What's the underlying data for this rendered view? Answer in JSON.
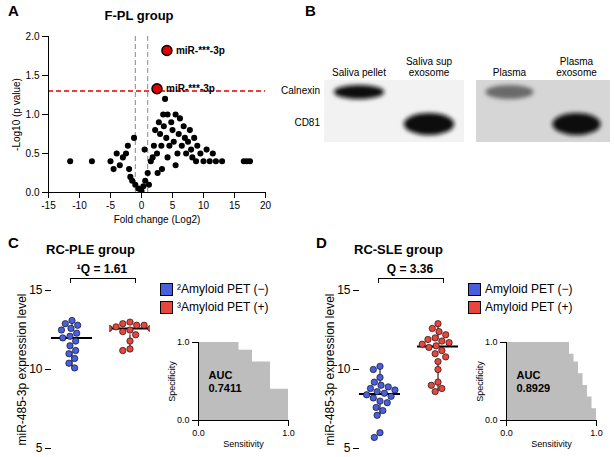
{
  "chart_data": [
    {
      "panel": "A",
      "type": "scatter",
      "title": "F-PL group",
      "xlabel": "Fold change (Log2)",
      "ylabel": "-Log10 (p value)",
      "xlim": [
        -15,
        20
      ],
      "xticks": [
        -15,
        -10,
        -5,
        0,
        5,
        10,
        15,
        20
      ],
      "ylim": [
        0,
        2.0
      ],
      "yticks": [
        {
          "value": 0,
          "label": "0.0"
        },
        0.5,
        {
          "value": 1,
          "label": "1.0"
        },
        1.5,
        {
          "value": 2,
          "label": "2.0"
        }
      ],
      "hlines": [
        {
          "value": 1.3,
          "color": "#e00000",
          "line_style": "dashed"
        }
      ],
      "vlines": [
        {
          "value": -1,
          "color": "#888888",
          "line_style": "dashed"
        },
        {
          "value": 1,
          "color": "#888888",
          "line_style": "dashed"
        }
      ],
      "series": [
        {
          "color": "#000000",
          "x": [
            -11.5,
            -8,
            -5,
            -4.5,
            -4,
            -3.5,
            -3,
            -2.5,
            -2,
            -1.8,
            -1.5,
            -1,
            -0.5,
            0,
            0.3,
            0.6,
            1,
            1.2,
            -2.2,
            -1.2,
            0.5,
            1.5,
            2,
            2.2,
            2.5,
            2.8,
            3,
            3.2,
            3.5,
            3.8,
            3.6,
            4,
            4.2,
            4.5,
            4.8,
            5,
            5.2,
            5.5,
            5.8,
            6,
            6.2,
            6.5,
            6.8,
            7,
            7.2,
            7.5,
            7.8,
            8,
            8.2,
            8.5,
            8.8,
            9,
            9.5,
            10,
            10.5,
            11,
            11.5,
            12,
            13,
            16.5,
            17,
            17.5,
            1.8,
            2.6,
            4.2,
            3.3,
            5.5
          ],
          "y": [
            0.4,
            0.4,
            0.4,
            0.3,
            0.5,
            0.35,
            0.45,
            0.5,
            0.3,
            0.2,
            0.15,
            0.1,
            0.05,
            0.02,
            0.08,
            0.15,
            0.25,
            0.1,
            0.6,
            0.7,
            0.55,
            0.4,
            0.6,
            0.8,
            0.5,
            0.9,
            0.75,
            0.6,
            1.0,
            1.2,
            0.85,
            0.7,
            0.45,
            0.6,
            0.9,
            0.8,
            0.65,
            1.0,
            0.5,
            0.75,
            0.95,
            0.6,
            0.85,
            0.7,
            0.5,
            0.65,
            0.8,
            0.55,
            0.45,
            0.7,
            0.4,
            0.6,
            0.5,
            0.4,
            0.55,
            0.4,
            0.5,
            0.4,
            0.4,
            0.4,
            0.4,
            0.4,
            0.45,
            0.25,
            1.0,
            0.3,
            0.35
          ]
        },
        {
          "color": "#e00000",
          "x": [
            4.1,
            2.5
          ],
          "y": [
            1.82,
            1.33
          ],
          "labels": [
            "miR-***-3p",
            "miR-***-3p"
          ]
        }
      ]
    },
    {
      "panel": "B",
      "type": "blot",
      "blots": [
        {
          "lanes": [
            "Saliva pellet",
            "Saliva sup exosome"
          ]
        },
        {
          "lanes": [
            "Plasma",
            "Plasma exosome"
          ]
        }
      ],
      "rows": [
        "Calnexin",
        "CD81"
      ],
      "bands": {
        "Calnexin": [
          "Saliva pellet",
          "Plasma"
        ],
        "CD81": [
          "Saliva sup exosome",
          "Plasma exosome"
        ]
      }
    },
    {
      "panel": "C",
      "type": "box",
      "title": "RC-PLE group",
      "ylabel": "miR-485-3p expression level",
      "ylim": [
        5,
        15
      ],
      "yticks": [
        5,
        10,
        15
      ],
      "annotation": "¹Q = 1.61",
      "series": [
        {
          "name": "²Amyloid PET (−)",
          "color": "#4a5fdc",
          "values": [
            13.1,
            12.9,
            12.8,
            12.6,
            12.5,
            12.3,
            12.1,
            12.0,
            11.8,
            11.5,
            11.2,
            11.0,
            10.7,
            10.4,
            10.1
          ]
        },
        {
          "name": "³Amyloid PET (+)",
          "color": "#e8453c",
          "values": [
            13.0,
            12.9,
            12.8,
            12.8,
            12.7,
            12.6,
            12.6,
            12.5,
            12.4,
            12.2,
            11.8,
            11.3,
            11.2
          ]
        }
      ],
      "inset": {
        "type": "area",
        "xlabel": "Sensitivity",
        "ylabel": "Specificity",
        "color": "#bdbdbd",
        "xlim": [
          0,
          1
        ],
        "ylim": [
          0,
          1
        ],
        "xticks": [
          {
            "value": 0,
            "label": "0.0"
          },
          {
            "value": 1,
            "label": "1.0"
          }
        ],
        "yticks": [
          {
            "value": 0,
            "label": "0.0"
          },
          {
            "value": 1,
            "label": "1.0"
          }
        ],
        "x": [
          0,
          0.45,
          0.6,
          0.8,
          0.95,
          1
        ],
        "y": [
          1,
          0.9,
          0.75,
          0.4,
          0.4,
          0
        ],
        "annotation": [
          "AUC",
          "0.7411"
        ]
      }
    },
    {
      "panel": "D",
      "type": "box",
      "title": "RC-SLE group",
      "ylabel": "miR-485-3p expression level",
      "ylim": [
        5,
        15
      ],
      "yticks": [
        5,
        10,
        15
      ],
      "annotation": "Q = 3.36",
      "series": [
        {
          "name": "Amyloid PET (−)",
          "color": "#4a5fdc",
          "values": [
            10.2,
            10.0,
            9.5,
            9.2,
            9.0,
            8.9,
            8.8,
            8.7,
            8.6,
            8.5,
            8.4,
            8.3,
            8.2,
            8.0,
            7.9,
            7.6,
            7.4,
            7.1,
            6.0,
            5.7
          ]
        },
        {
          "name": "Amyloid PET (+)",
          "color": "#e8453c",
          "values": [
            12.9,
            12.6,
            12.4,
            12.2,
            12.0,
            11.9,
            11.8,
            11.7,
            11.6,
            11.5,
            11.4,
            11.2,
            11.0,
            10.8,
            10.5,
            10.0,
            9.2,
            9.0,
            8.8,
            8.6
          ]
        }
      ],
      "inset": {
        "type": "area",
        "xlabel": "Sensitivity",
        "ylabel": "Specificity",
        "color": "#bdbdbd",
        "xlim": [
          0,
          1
        ],
        "ylim": [
          0,
          1
        ],
        "xticks": [
          {
            "value": 0,
            "label": "0.0"
          },
          {
            "value": 1,
            "label": "1.0"
          }
        ],
        "yticks": [
          {
            "value": 0,
            "label": "0.0"
          },
          {
            "value": 1,
            "label": "1.0"
          }
        ],
        "x": [
          0,
          0.7,
          0.75,
          0.8,
          0.85,
          0.9,
          0.95,
          1
        ],
        "y": [
          1,
          0.85,
          0.75,
          0.6,
          0.45,
          0.3,
          0.15,
          0
        ],
        "annotation": [
          "AUC",
          "0.8929"
        ]
      }
    }
  ]
}
